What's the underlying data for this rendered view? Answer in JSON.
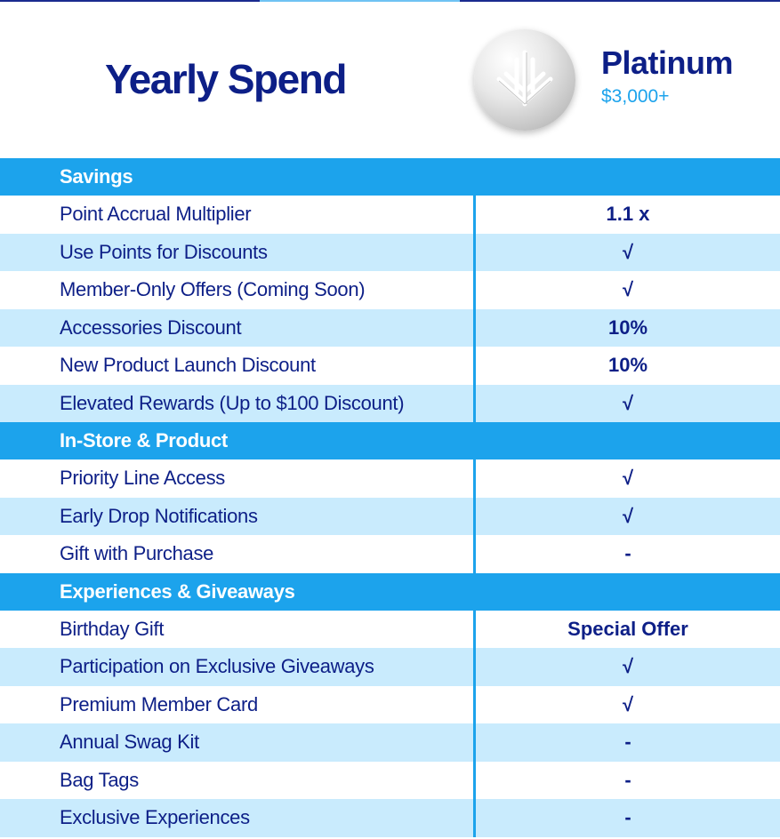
{
  "header": {
    "title": "Yearly Spend",
    "tier_name": "Platinum",
    "tier_price": "$3,000+",
    "logo_icon": "platinum-leaf-icon"
  },
  "colors": {
    "navy": "#0d1f87",
    "accent_blue": "#1ca3ec",
    "light_row": "#c9ebfd"
  },
  "sections": [
    {
      "title": "Savings",
      "rows": [
        {
          "label": "Point Accrual Multiplier",
          "value": "1.1 x"
        },
        {
          "label": "Use Points for Discounts",
          "value": "√"
        },
        {
          "label": "Member-Only Offers (Coming Soon)",
          "value": "√"
        },
        {
          "label": "Accessories Discount",
          "value": "10%"
        },
        {
          "label": "New Product Launch Discount",
          "value": "10%"
        },
        {
          "label": "Elevated Rewards (Up to $100 Discount)",
          "value": "√"
        }
      ]
    },
    {
      "title": "In-Store & Product",
      "rows": [
        {
          "label": "Priority Line Access",
          "value": "√"
        },
        {
          "label": "Early Drop Notifications",
          "value": "√"
        },
        {
          "label": "Gift with Purchase",
          "value": "-"
        }
      ]
    },
    {
      "title": "Experiences & Giveaways",
      "rows": [
        {
          "label": "Birthday Gift",
          "value": "Special Offer"
        },
        {
          "label": "Participation on Exclusive Giveaways",
          "value": "√"
        },
        {
          "label": "Premium Member Card",
          "value": "√"
        },
        {
          "label": "Annual Swag Kit",
          "value": "-"
        },
        {
          "label": "Bag Tags",
          "value": "-"
        },
        {
          "label": "Exclusive Experiences",
          "value": "-"
        }
      ]
    }
  ]
}
